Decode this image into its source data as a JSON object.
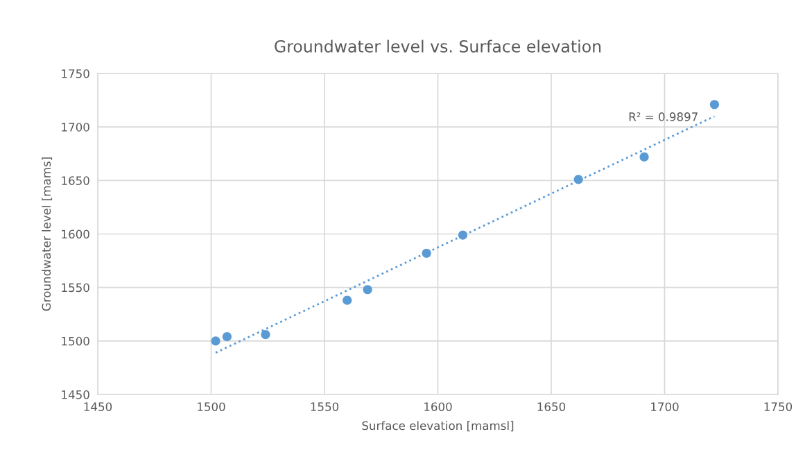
{
  "chart_data": {
    "type": "scatter",
    "title": "Groundwater level vs. Surface elevation",
    "xlabel": "Surface elevation [mamsl]",
    "ylabel": "Groundwater level [mams]",
    "series": [
      {
        "color": "#5b9bd5",
        "marker": "circle",
        "x": [
          1502,
          1507,
          1524,
          1560,
          1569,
          1595,
          1611,
          1662,
          1691,
          1722
        ],
        "values": [
          1500,
          1504,
          1506,
          1538,
          1548,
          1582,
          1599,
          1651,
          1672,
          1721
        ]
      },
      {
        "type": "line",
        "color": "#5b9bd5",
        "line_style": "dotted",
        "x": [
          1502,
          1722
        ],
        "values": [
          1489,
          1710
        ]
      }
    ],
    "annotations": [
      "R² = 0.9897"
    ],
    "xlim": [
      1450,
      1750
    ],
    "xticks": [
      1450,
      1500,
      1550,
      1600,
      1650,
      1700,
      1750
    ],
    "ylim": [
      1450,
      1750
    ],
    "yticks": [
      1450,
      1500,
      1550,
      1600,
      1650,
      1700,
      1750
    ],
    "grid": true
  }
}
